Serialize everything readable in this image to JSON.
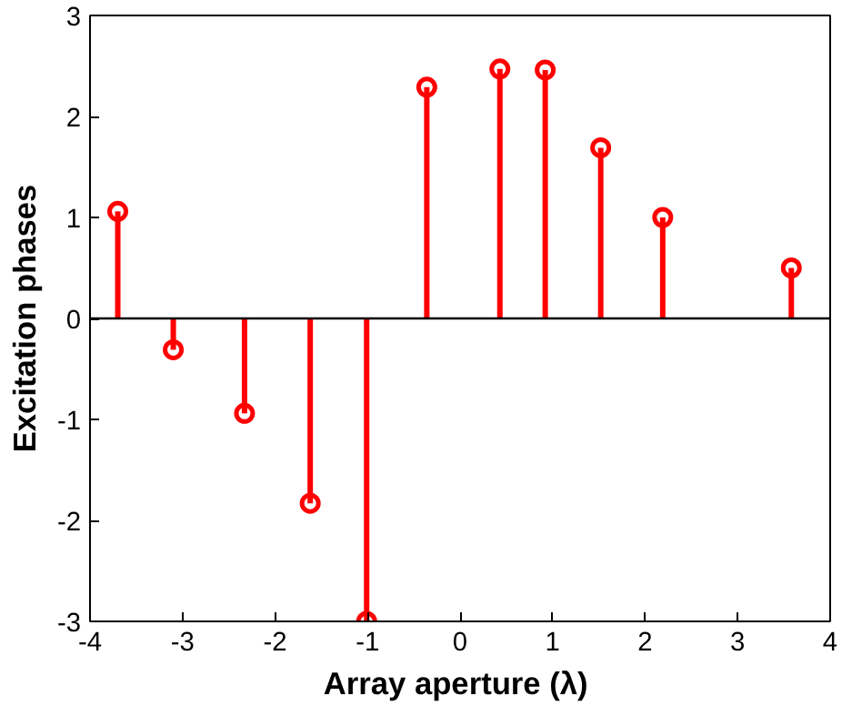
{
  "chart_data": {
    "type": "lollipop",
    "xlabel": "Array aperture  (λ)",
    "ylabel": "Excitation phases",
    "x": [
      -3.7,
      -3.1,
      -2.33,
      -1.62,
      -1.01,
      -0.36,
      0.43,
      0.92,
      1.52,
      2.19,
      3.58
    ],
    "series": [
      {
        "color": "#ff0000",
        "values": [
          1.06,
          -0.31,
          -0.94,
          -1.83,
          -3.0,
          2.29,
          2.47,
          2.46,
          1.69,
          1.0,
          0.5
        ]
      }
    ],
    "xlim": [
      -4,
      4
    ],
    "ylim": [
      -3,
      3
    ],
    "xticks": [
      -4,
      -3,
      -2,
      -1,
      0,
      1,
      2,
      3,
      4
    ],
    "yticks": [
      -3,
      -2,
      -1,
      0,
      1,
      2,
      3
    ],
    "marker": "circle",
    "ref_lines": [
      {
        "axis": "y",
        "value": 0,
        "color": "#000000"
      }
    ]
  }
}
